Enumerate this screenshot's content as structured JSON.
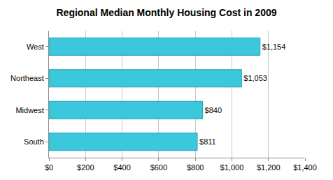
{
  "chart_data": {
    "type": "bar",
    "title": "Regional Median Monthly Housing Cost in 2009",
    "orientation": "horizontal",
    "categories": [
      "West",
      "Northeast",
      "Midwest",
      "South"
    ],
    "values": [
      1154,
      1053,
      840,
      811
    ],
    "value_labels": [
      "$1,154",
      "$1,053",
      "$840",
      "$811"
    ],
    "data_labels": true,
    "color": "#3cc8dc",
    "xlim": [
      0,
      1400
    ],
    "xticks": [
      {
        "value": 0,
        "label": "$0"
      },
      {
        "value": 200,
        "label": "$200"
      },
      {
        "value": 400,
        "label": "$400"
      },
      {
        "value": 600,
        "label": "$600"
      },
      {
        "value": 800,
        "label": "$800"
      },
      {
        "value": 1000,
        "label": "$1,000"
      },
      {
        "value": 1200,
        "label": "$1,200"
      },
      {
        "value": 1400,
        "label": "$1,400"
      }
    ],
    "grid": true
  }
}
